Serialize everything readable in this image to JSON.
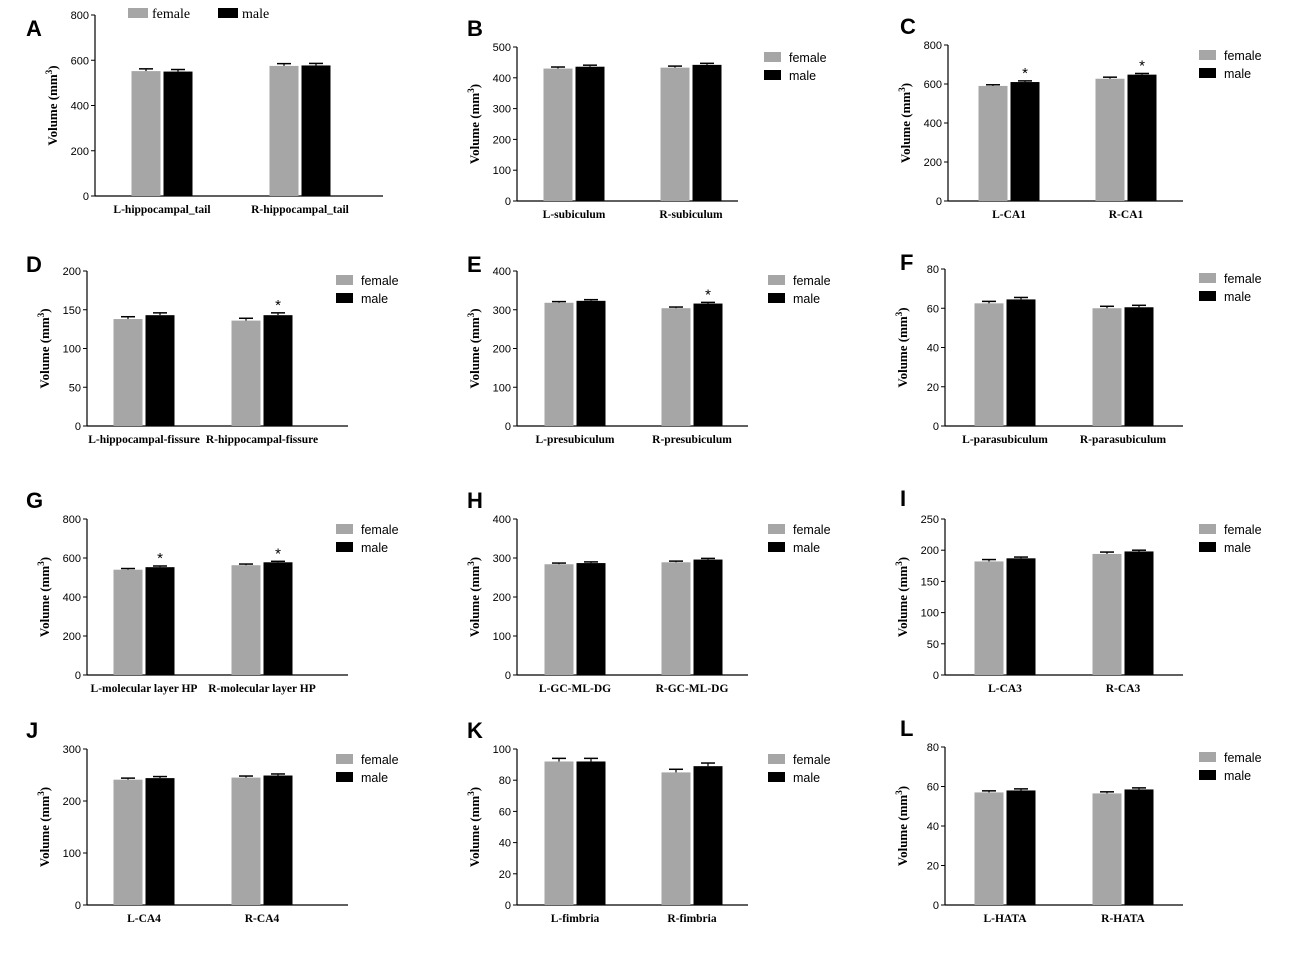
{
  "figure": {
    "legend_colors": {
      "female": "#a6a6a6",
      "male": "#000000"
    }
  },
  "chart_data": [
    {
      "panel": "A",
      "type": "bar",
      "categories": [
        "L-hippocampal_tail",
        "R-hippocampal_tail"
      ],
      "series": [
        {
          "name": "female",
          "values": [
            552,
            575
          ],
          "errors": [
            10,
            10
          ]
        },
        {
          "name": "male",
          "values": [
            550,
            577
          ],
          "errors": [
            9,
            9
          ]
        }
      ],
      "ylabel": "Volume (mm",
      "ylabel_sup": "3",
      "ylabel_end": ")",
      "ylim": [
        0,
        800
      ],
      "yticks": [
        0,
        200,
        400,
        600,
        800
      ],
      "significant": [
        [
          false,
          false
        ],
        [
          false,
          false
        ]
      ],
      "legend": [
        "female",
        "male"
      ],
      "legend_placement": "top"
    },
    {
      "panel": "B",
      "type": "bar",
      "categories": [
        "L-subiculum",
        "R-subiculum"
      ],
      "series": [
        {
          "name": "female",
          "values": [
            430,
            433
          ],
          "errors": [
            5,
            5
          ]
        },
        {
          "name": "male",
          "values": [
            436,
            442
          ],
          "errors": [
            5,
            5
          ]
        }
      ],
      "ylabel": "Volume (mm",
      "ylabel_sup": "3",
      "ylabel_end": ")",
      "ylim": [
        0,
        500
      ],
      "yticks": [
        0,
        100,
        200,
        300,
        400,
        500
      ],
      "significant": [
        [
          false,
          false
        ],
        [
          false,
          false
        ]
      ],
      "legend": [
        "female",
        "male"
      ],
      "legend_placement": "top-right"
    },
    {
      "panel": "C",
      "type": "bar",
      "categories": [
        "L-CA1",
        "R-CA1"
      ],
      "series": [
        {
          "name": "female",
          "values": [
            590,
            627
          ],
          "errors": [
            6,
            8
          ]
        },
        {
          "name": "male",
          "values": [
            610,
            648
          ],
          "errors": [
            6,
            6
          ]
        }
      ],
      "ylabel": "Volume (mm",
      "ylabel_sup": "3",
      "ylabel_end": ")",
      "ylim": [
        0,
        800
      ],
      "yticks": [
        0,
        200,
        400,
        600,
        800
      ],
      "significant": [
        [
          false,
          false
        ],
        [
          true,
          true
        ]
      ],
      "legend": [
        "female",
        "male"
      ],
      "legend_placement": "top-right"
    },
    {
      "panel": "D",
      "type": "bar",
      "categories": [
        "L-hippocampal-fissure",
        "R-hippocampal-fissure"
      ],
      "series": [
        {
          "name": "female",
          "values": [
            138,
            136
          ],
          "errors": [
            3,
            3
          ]
        },
        {
          "name": "male",
          "values": [
            143,
            143
          ],
          "errors": [
            3,
            3
          ]
        }
      ],
      "ylabel": "Volume (mm",
      "ylabel_sup": "3",
      "ylabel_end": ")",
      "ylim": [
        0,
        200
      ],
      "yticks": [
        0,
        50,
        100,
        150,
        200
      ],
      "significant": [
        [
          false,
          false
        ],
        [
          false,
          true
        ]
      ],
      "legend": [
        "female",
        "male"
      ],
      "legend_placement": "top-right"
    },
    {
      "panel": "E",
      "type": "bar",
      "categories": [
        "L-presubiculum",
        "R-presubiculum"
      ],
      "series": [
        {
          "name": "female",
          "values": [
            318,
            304
          ],
          "errors": [
            3,
            3
          ]
        },
        {
          "name": "male",
          "values": [
            323,
            316
          ],
          "errors": [
            3,
            3
          ]
        }
      ],
      "ylabel": "Volume (mm",
      "ylabel_sup": "3",
      "ylabel_end": ")",
      "ylim": [
        0,
        400
      ],
      "yticks": [
        0,
        100,
        200,
        300,
        400
      ],
      "significant": [
        [
          false,
          false
        ],
        [
          false,
          true
        ]
      ],
      "legend": [
        "female",
        "male"
      ],
      "legend_placement": "top-right"
    },
    {
      "panel": "F",
      "type": "bar",
      "categories": [
        "L-parasubiculum",
        "R-parasubiculum"
      ],
      "series": [
        {
          "name": "female",
          "values": [
            62.5,
            60
          ],
          "errors": [
            1,
            1
          ]
        },
        {
          "name": "male",
          "values": [
            64.5,
            60.5
          ],
          "errors": [
            1,
            1
          ]
        }
      ],
      "ylabel": "Volume (mm",
      "ylabel_sup": "3",
      "ylabel_end": ")",
      "ylim": [
        0,
        80
      ],
      "yticks": [
        0,
        20,
        40,
        60,
        80
      ],
      "significant": [
        [
          false,
          false
        ],
        [
          false,
          false
        ]
      ],
      "legend": [
        "female",
        "male"
      ],
      "legend_placement": "top-right"
    },
    {
      "panel": "G",
      "type": "bar",
      "categories": [
        "L-molecular layer HP",
        "R-molecular layer HP"
      ],
      "series": [
        {
          "name": "female",
          "values": [
            540,
            563
          ],
          "errors": [
            6,
            6
          ]
        },
        {
          "name": "male",
          "values": [
            553,
            578
          ],
          "errors": [
            6,
            5
          ]
        }
      ],
      "ylabel": "Volume (mm",
      "ylabel_sup": "3",
      "ylabel_end": ")",
      "ylim": [
        0,
        800
      ],
      "yticks": [
        0,
        200,
        400,
        600,
        800
      ],
      "significant": [
        [
          false,
          false
        ],
        [
          true,
          true
        ]
      ],
      "legend": [
        "female",
        "male"
      ],
      "legend_placement": "top-right"
    },
    {
      "panel": "H",
      "type": "bar",
      "categories": [
        "L-GC-ML-DG",
        "R-GC-ML-DG"
      ],
      "series": [
        {
          "name": "female",
          "values": [
            284,
            289
          ],
          "errors": [
            3,
            3
          ]
        },
        {
          "name": "male",
          "values": [
            287,
            296
          ],
          "errors": [
            3,
            3
          ]
        }
      ],
      "ylabel": "Volume (mm",
      "ylabel_sup": "3",
      "ylabel_end": ")",
      "ylim": [
        0,
        400
      ],
      "yticks": [
        0,
        100,
        200,
        300,
        400
      ],
      "significant": [
        [
          false,
          false
        ],
        [
          false,
          false
        ]
      ],
      "legend": [
        "female",
        "male"
      ],
      "legend_placement": "top-right"
    },
    {
      "panel": "I",
      "type": "bar",
      "categories": [
        "L-CA3",
        "R-CA3"
      ],
      "series": [
        {
          "name": "female",
          "values": [
            182,
            194
          ],
          "errors": [
            3,
            3
          ]
        },
        {
          "name": "male",
          "values": [
            187,
            198
          ],
          "errors": [
            2,
            2
          ]
        }
      ],
      "ylabel": "Volume (mm",
      "ylabel_sup": "3",
      "ylabel_end": ")",
      "ylim": [
        0,
        250
      ],
      "yticks": [
        0,
        50,
        100,
        150,
        200,
        250
      ],
      "significant": [
        [
          false,
          false
        ],
        [
          false,
          false
        ]
      ],
      "legend": [
        "female",
        "male"
      ],
      "legend_placement": "top-right"
    },
    {
      "panel": "J",
      "type": "bar",
      "categories": [
        "L-CA4",
        "R-CA4"
      ],
      "series": [
        {
          "name": "female",
          "values": [
            241,
            245
          ],
          "errors": [
            3,
            3
          ]
        },
        {
          "name": "male",
          "values": [
            244,
            249
          ],
          "errors": [
            3,
            3
          ]
        }
      ],
      "ylabel": "Volume (mm",
      "ylabel_sup": "3",
      "ylabel_end": ")",
      "ylim": [
        0,
        300
      ],
      "yticks": [
        0,
        100,
        200,
        300
      ],
      "significant": [
        [
          false,
          false
        ],
        [
          false,
          false
        ]
      ],
      "legend": [
        "female",
        "male"
      ],
      "legend_placement": "top-right"
    },
    {
      "panel": "K",
      "type": "bar",
      "categories": [
        "L-fimbria",
        "R-fimbria"
      ],
      "series": [
        {
          "name": "female",
          "values": [
            92,
            85
          ],
          "errors": [
            2,
            2
          ]
        },
        {
          "name": "male",
          "values": [
            92,
            89
          ],
          "errors": [
            2,
            2
          ]
        }
      ],
      "ylabel": "Volume (mm",
      "ylabel_sup": "3",
      "ylabel_end": ")",
      "ylim": [
        0,
        100
      ],
      "yticks": [
        0,
        20,
        40,
        60,
        80,
        100
      ],
      "significant": [
        [
          false,
          false
        ],
        [
          false,
          false
        ]
      ],
      "legend": [
        "female",
        "male"
      ],
      "legend_placement": "top-right"
    },
    {
      "panel": "L",
      "type": "bar",
      "categories": [
        "L-HATA",
        "R-HATA"
      ],
      "series": [
        {
          "name": "female",
          "values": [
            57,
            56.5
          ],
          "errors": [
            0.8,
            0.8
          ]
        },
        {
          "name": "male",
          "values": [
            58,
            58.5
          ],
          "errors": [
            0.8,
            0.8
          ]
        }
      ],
      "ylabel": "Volume (mm",
      "ylabel_sup": "3",
      "ylabel_end": ")",
      "ylim": [
        0,
        80
      ],
      "yticks": [
        0,
        20,
        40,
        60,
        80
      ],
      "significant": [
        [
          false,
          false
        ],
        [
          false,
          false
        ]
      ],
      "legend": [
        "female",
        "male"
      ],
      "legend_placement": "top-right"
    }
  ]
}
